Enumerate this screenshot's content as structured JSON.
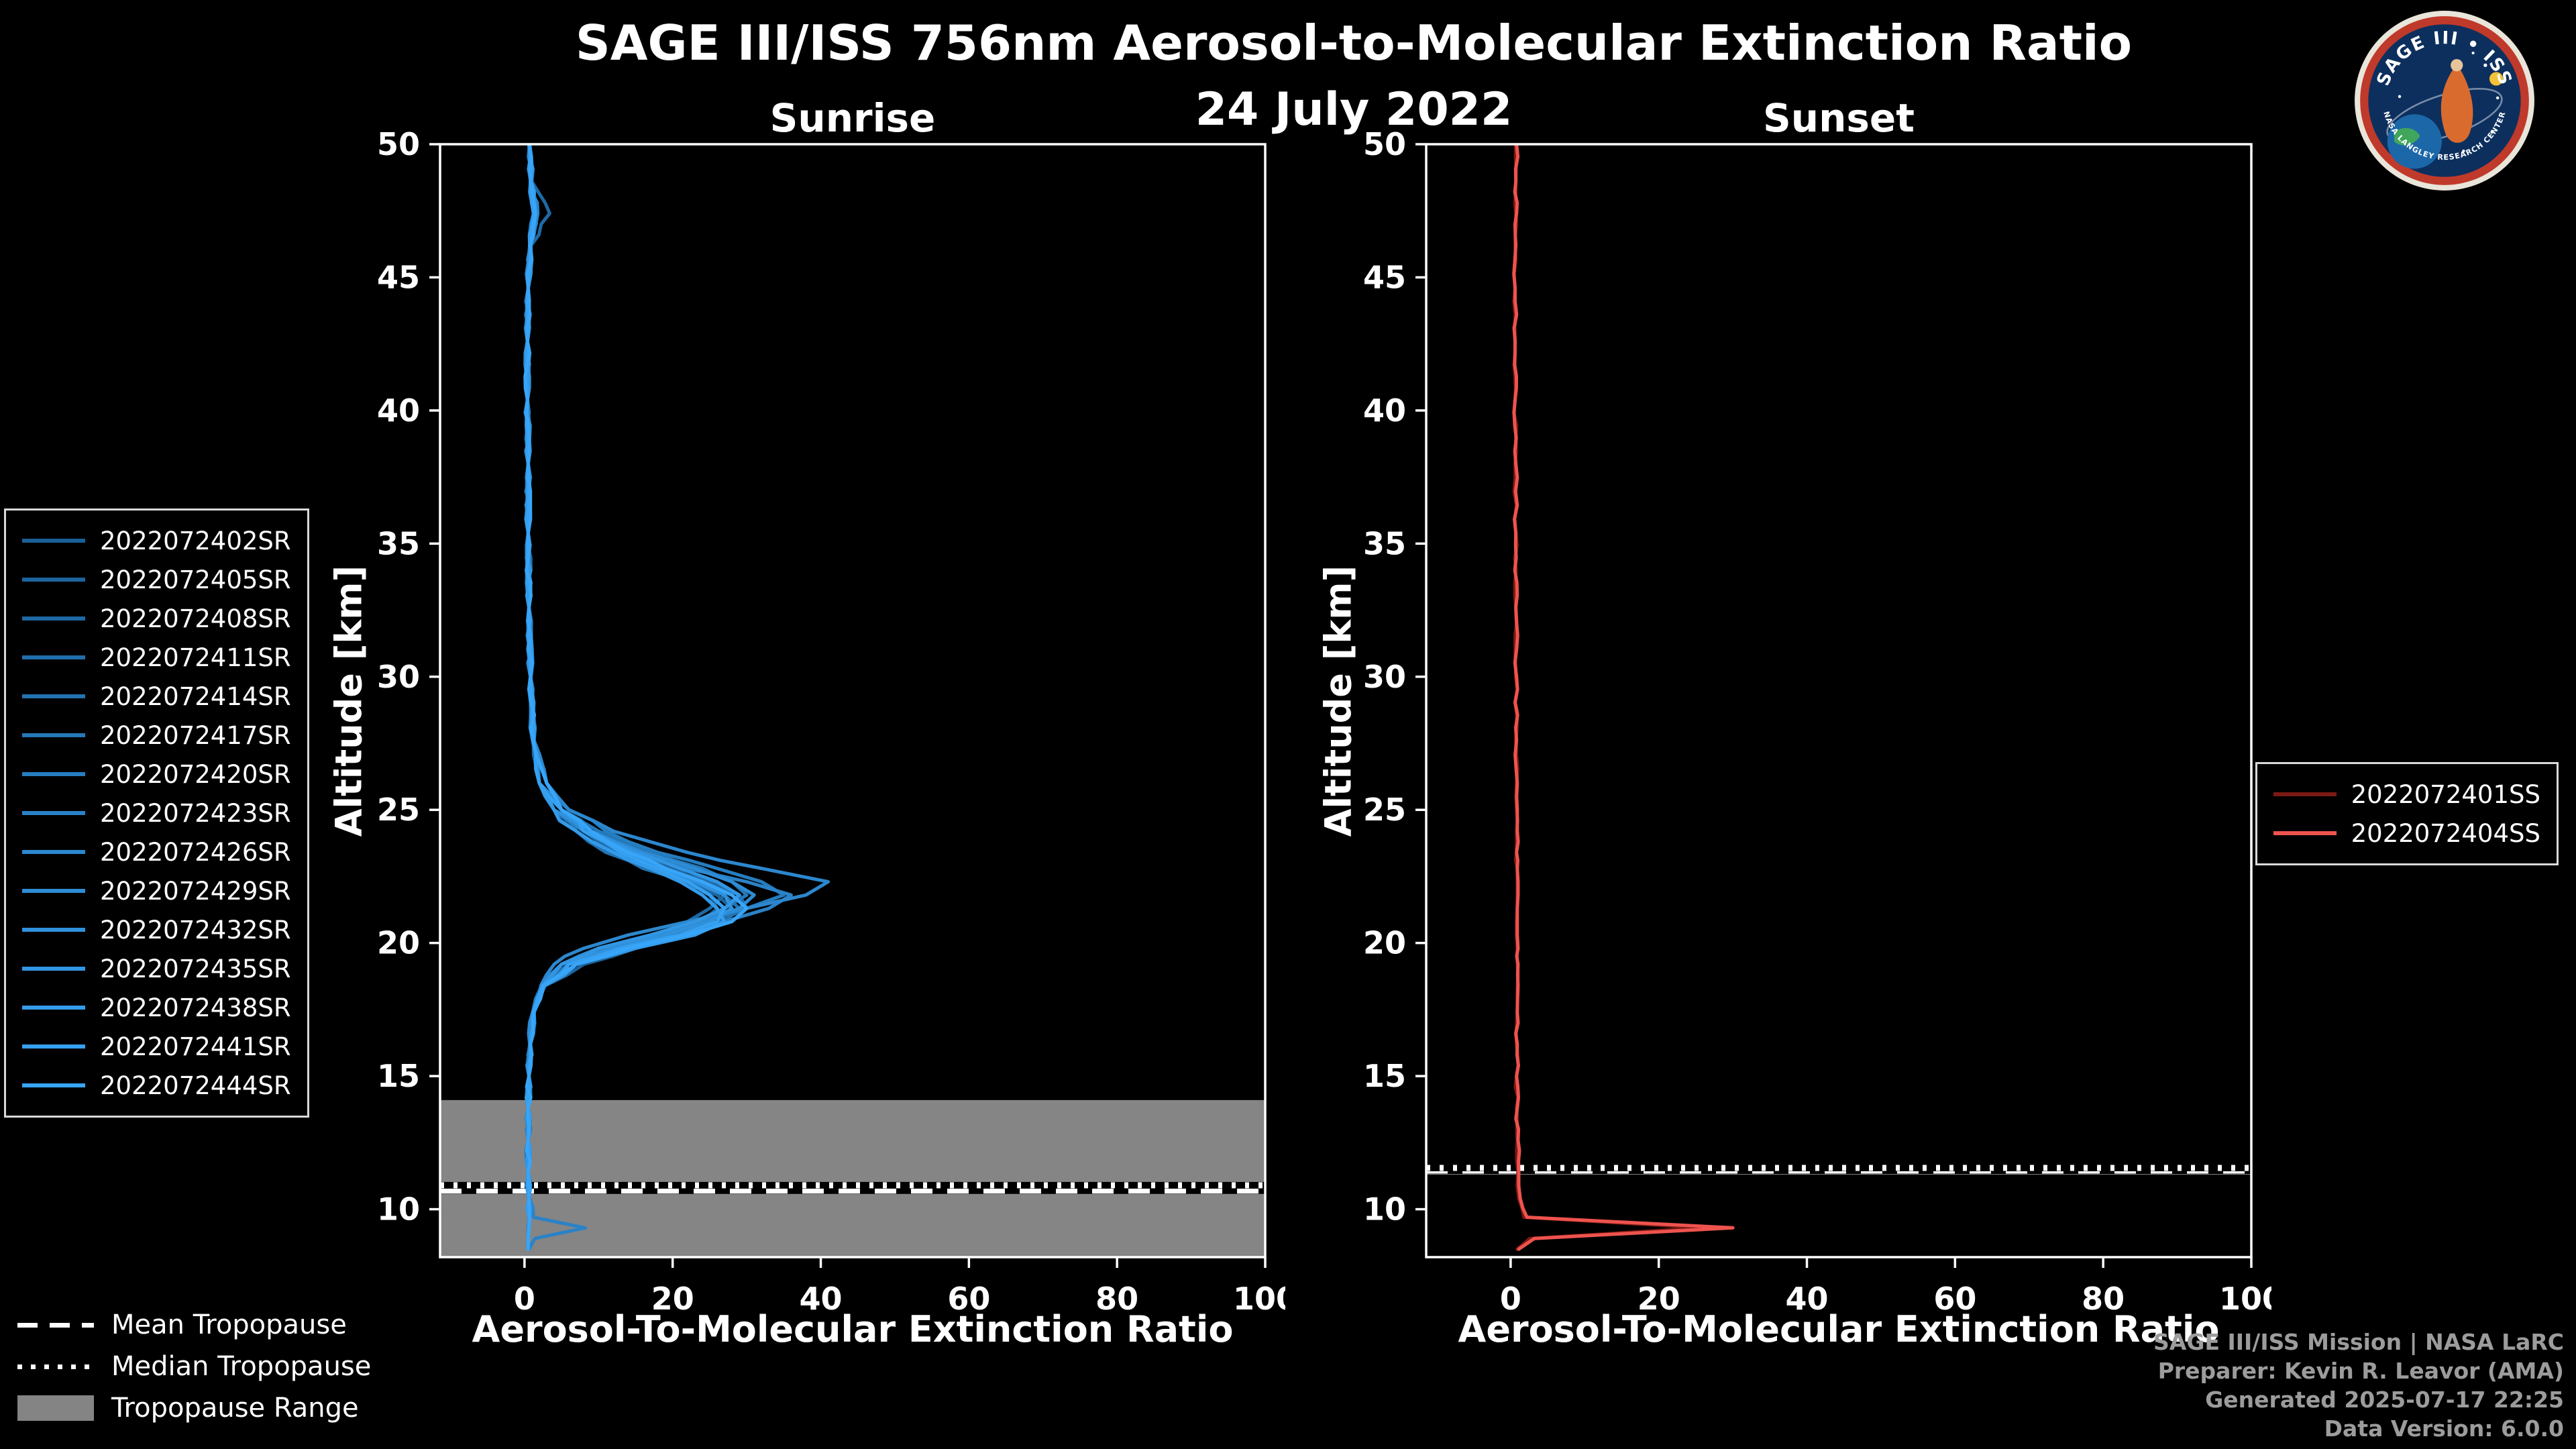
{
  "meta": {
    "title": "SAGE III/ISS 756nm Aerosol-to-Molecular Extinction Ratio",
    "date": "24 July 2022"
  },
  "logo": {
    "title": "SAGE III • ISS",
    "subtitle": "NASA LANGLEY RESEARCH CENTER"
  },
  "credits": [
    "SAGE III/ISS Mission | NASA LaRC",
    "Preparer: Kevin R. Leavor (AMA)",
    "Generated 2025-07-17 22:25",
    "Data Version: 6.0.0"
  ],
  "tropopause_legend": [
    {
      "label": "Mean Tropopause",
      "style": "dashed"
    },
    {
      "label": "Median Tropopause",
      "style": "dotted"
    },
    {
      "label": "Tropopause Range",
      "style": "patch"
    }
  ],
  "colors": {
    "background": "#000000",
    "axis": "#ffffff",
    "tropopause_band": "#858585",
    "credits_text": "#9c9c9c"
  },
  "chart_data": [
    {
      "type": "line",
      "id": "sunrise",
      "title": "Sunrise",
      "xlabel": "Aerosol-To-Molecular Extinction Ratio",
      "ylabel": "Altitude [km]",
      "xlim": [
        -11.4,
        100
      ],
      "ylim": [
        8.2,
        50
      ],
      "xticks": [
        0,
        20,
        40,
        60,
        80,
        100
      ],
      "yticks": [
        10,
        15,
        20,
        25,
        30,
        35,
        40,
        45,
        50
      ],
      "grid": false,
      "legend_position": "outside-left",
      "noise": 1.0,
      "tropopause": {
        "mean": 10.7,
        "median": 10.9,
        "range": [
          8.2,
          14.1
        ]
      },
      "altitudes": [
        50,
        48.6,
        47.4,
        46.2,
        44.6,
        42.6,
        40.4,
        38,
        35.4,
        32.6,
        30,
        27.6,
        26,
        25,
        24.2,
        23.4,
        22.8,
        22.3,
        21.8,
        21.3,
        20.8,
        20.3,
        19.8,
        19.2,
        18.4,
        17.4,
        16.2,
        15,
        13.8,
        12.6,
        11.4,
        10.4,
        9.7,
        9.3,
        8.9,
        8.5
      ],
      "series": [
        {
          "name": "2022072402SR",
          "color": "#1a5f96",
          "values": [
            0.7,
            0.9,
            1.4,
            0.8,
            0.5,
            0.4,
            0.4,
            0.5,
            0.5,
            0.6,
            0.8,
            1.2,
            2,
            4,
            8,
            14,
            18,
            22,
            25,
            26,
            24,
            20,
            14,
            7,
            2.5,
            1.2,
            0.8,
            0.6,
            0.5,
            0.5,
            0.5,
            0.6,
            0.7,
            0.6,
            0.5,
            0.5
          ]
        },
        {
          "name": "2022072405SR",
          "color": "#1c649d",
          "values": [
            0.6,
            0.8,
            1.2,
            0.7,
            0.5,
            0.4,
            0.4,
            0.5,
            0.5,
            0.6,
            0.8,
            1.1,
            2,
            4,
            7,
            12,
            17,
            21,
            26,
            28,
            26,
            21,
            15,
            8,
            2.8,
            1.3,
            0.8,
            0.6,
            0.5,
            0.5,
            0.5,
            0.6,
            0.6,
            0.5,
            0.5,
            0.5
          ]
        },
        {
          "name": "2022072408SR",
          "color": "#1e69a4",
          "values": [
            0.7,
            1.0,
            3.4,
            0.9,
            0.5,
            0.4,
            0.4,
            0.5,
            0.5,
            0.6,
            0.8,
            1.2,
            2,
            5,
            9,
            15,
            20,
            24,
            27,
            25,
            22,
            18,
            12,
            6,
            2.4,
            1.1,
            0.7,
            0.6,
            0.5,
            0.5,
            0.5,
            0.6,
            0.7,
            0.6,
            0.5,
            0.5
          ]
        },
        {
          "name": "2022072411SR",
          "color": "#206eab",
          "values": [
            0.7,
            0.9,
            1.5,
            0.8,
            0.5,
            0.4,
            0.4,
            0.5,
            0.5,
            0.6,
            0.9,
            1.3,
            3,
            5,
            8,
            13,
            19,
            25,
            29,
            30,
            26,
            20,
            13,
            6,
            2.5,
            1.2,
            0.8,
            0.6,
            0.5,
            0.5,
            0.5,
            0.6,
            0.7,
            0.6,
            0.5,
            0.5
          ]
        },
        {
          "name": "2022072414SR",
          "color": "#2273b2",
          "values": [
            0.6,
            0.8,
            1.3,
            0.7,
            0.5,
            0.4,
            0.4,
            0.5,
            0.5,
            0.6,
            0.8,
            1.2,
            2,
            4,
            7,
            11,
            16,
            22,
            27,
            29,
            27,
            22,
            15,
            7,
            2.6,
            1.2,
            0.8,
            0.6,
            0.5,
            0.5,
            0.5,
            0.6,
            0.6,
            0.6,
            0.5,
            0.5
          ]
        },
        {
          "name": "2022072417SR",
          "color": "#2478b9",
          "values": [
            0.7,
            0.9,
            1.4,
            0.8,
            0.5,
            0.4,
            0.4,
            0.5,
            0.5,
            0.6,
            0.8,
            1.2,
            2,
            5,
            10,
            17,
            24,
            28,
            30,
            27,
            23,
            18,
            11,
            5,
            2.3,
            1.1,
            0.7,
            0.6,
            0.5,
            0.5,
            0.5,
            0.6,
            0.7,
            0.6,
            0.5,
            0.5
          ]
        },
        {
          "name": "2022072420SR",
          "color": "#267dc0",
          "values": [
            0.7,
            0.9,
            1.6,
            0.8,
            0.5,
            0.4,
            0.4,
            0.5,
            0.5,
            0.6,
            0.8,
            1.2,
            3,
            6,
            11,
            18,
            26,
            32,
            35,
            30,
            24,
            17,
            10,
            5,
            2.4,
            1.2,
            0.8,
            0.6,
            0.5,
            0.5,
            0.5,
            0.6,
            0.7,
            0.6,
            0.5,
            0.5
          ]
        },
        {
          "name": "2022072423SR",
          "color": "#2a82c7",
          "values": [
            0.6,
            0.8,
            1.3,
            0.7,
            0.5,
            0.4,
            0.4,
            0.5,
            0.5,
            0.6,
            0.8,
            1.1,
            2,
            4,
            8,
            14,
            22,
            30,
            36,
            33,
            27,
            19,
            11,
            5,
            2.6,
            1.3,
            0.8,
            0.6,
            0.5,
            0.5,
            0.5,
            0.7,
            1.2,
            8.2,
            1.4,
            0.6
          ]
        },
        {
          "name": "2022072426SR",
          "color": "#2c87ce",
          "values": [
            0.6,
            0.8,
            1.8,
            0.7,
            0.5,
            0.4,
            0.4,
            0.5,
            0.5,
            0.6,
            0.8,
            1.3,
            3,
            6,
            12,
            22,
            32,
            41,
            38,
            30,
            22,
            14,
            8,
            4,
            2.2,
            1.1,
            0.7,
            0.6,
            0.5,
            0.5,
            0.5,
            0.6,
            0.6,
            0.5,
            0.5,
            0.5
          ]
        },
        {
          "name": "2022072429SR",
          "color": "#2e8cd5",
          "values": [
            0.7,
            0.9,
            1.4,
            0.8,
            0.5,
            0.4,
            0.4,
            0.5,
            0.5,
            0.6,
            0.8,
            1.2,
            2,
            5,
            9,
            16,
            23,
            28,
            31,
            29,
            24,
            18,
            10,
            5,
            2.5,
            1.2,
            0.8,
            0.6,
            0.5,
            0.5,
            0.5,
            0.6,
            0.7,
            0.6,
            0.5,
            0.5
          ]
        },
        {
          "name": "2022072432SR",
          "color": "#3091dc",
          "values": [
            0.7,
            0.9,
            1.3,
            0.8,
            0.5,
            0.4,
            0.4,
            0.5,
            0.5,
            0.6,
            0.8,
            1.2,
            2,
            4,
            8,
            13,
            18,
            23,
            27,
            28,
            25,
            19,
            12,
            6,
            2.6,
            1.2,
            0.8,
            0.6,
            0.5,
            0.5,
            0.5,
            0.6,
            0.7,
            0.6,
            0.5,
            0.5
          ]
        },
        {
          "name": "2022072435SR",
          "color": "#3296e3",
          "values": [
            0.7,
            0.9,
            1.4,
            0.8,
            0.5,
            0.4,
            0.4,
            0.5,
            0.5,
            0.6,
            0.8,
            1.2,
            3,
            5,
            9,
            15,
            21,
            26,
            29,
            27,
            23,
            17,
            10,
            5,
            2.4,
            1.2,
            0.8,
            0.6,
            0.5,
            0.5,
            0.5,
            0.6,
            0.7,
            0.6,
            0.5,
            0.5
          ]
        },
        {
          "name": "2022072438SR",
          "color": "#349bea",
          "values": [
            0.6,
            0.8,
            1.2,
            0.7,
            0.5,
            0.4,
            0.4,
            0.5,
            0.5,
            0.6,
            0.8,
            1.1,
            2,
            4,
            7,
            12,
            17,
            21,
            24,
            26,
            27,
            23,
            15,
            7,
            2.7,
            1.3,
            0.8,
            0.6,
            0.5,
            0.5,
            0.5,
            0.6,
            0.6,
            0.6,
            0.5,
            0.5
          ]
        },
        {
          "name": "2022072441SR",
          "color": "#36a0f1",
          "values": [
            0.7,
            0.9,
            1.4,
            0.8,
            0.5,
            0.4,
            0.4,
            0.5,
            0.5,
            0.6,
            0.8,
            1.2,
            2,
            5,
            8,
            13,
            18,
            22,
            25,
            27,
            26,
            21,
            13,
            6,
            2.5,
            1.2,
            0.8,
            0.6,
            0.5,
            0.5,
            0.5,
            0.6,
            0.7,
            0.6,
            0.5,
            0.5
          ]
        },
        {
          "name": "2022072444SR",
          "color": "#38a5f8",
          "values": [
            0.7,
            0.9,
            1.5,
            0.8,
            0.5,
            0.4,
            0.4,
            0.5,
            0.5,
            0.6,
            0.8,
            1.2,
            3,
            5,
            9,
            14,
            19,
            24,
            28,
            30,
            28,
            22,
            14,
            7,
            2.5,
            1.2,
            0.8,
            0.6,
            0.5,
            0.5,
            0.5,
            0.6,
            0.7,
            0.6,
            0.5,
            0.5
          ]
        }
      ]
    },
    {
      "type": "line",
      "id": "sunset",
      "title": "Sunset",
      "xlabel": "Aerosol-To-Molecular Extinction Ratio",
      "ylabel": "Altitude [km]",
      "xlim": [
        -11.4,
        100
      ],
      "ylim": [
        8.2,
        50
      ],
      "xticks": [
        0,
        20,
        40,
        60,
        80,
        100
      ],
      "yticks": [
        10,
        15,
        20,
        25,
        30,
        35,
        40,
        45,
        50
      ],
      "grid": false,
      "legend_position": "outside-right",
      "noise": 0.7,
      "tropopause": {
        "mean": 11.45,
        "median": 11.55,
        "range": [
          11.3,
          11.6
        ]
      },
      "altitudes": [
        50,
        48.6,
        47.4,
        46.2,
        44.6,
        42.6,
        40.4,
        38,
        35.4,
        32.6,
        30,
        27.6,
        26,
        25,
        24.2,
        23.4,
        22.8,
        22.3,
        21.8,
        21.3,
        20.8,
        20.3,
        19.8,
        19.2,
        18.4,
        17.4,
        16.2,
        15,
        13.8,
        12.6,
        11.4,
        10.4,
        9.7,
        9.3,
        8.9,
        8.5
      ],
      "series": [
        {
          "name": "2022072401SS",
          "color": "#7a1a15",
          "values": [
            0.7,
            0.7,
            0.7,
            0.6,
            0.6,
            0.6,
            0.6,
            0.6,
            0.7,
            0.7,
            0.7,
            0.7,
            0.8,
            0.8,
            0.8,
            0.8,
            0.9,
            0.9,
            0.9,
            0.9,
            0.8,
            0.8,
            0.9,
            0.9,
            0.9,
            0.9,
            0.8,
            0.8,
            0.8,
            0.9,
            1.0,
            1.1,
            1.8,
            26,
            2.6,
            0.9
          ]
        },
        {
          "name": "2022072404SS",
          "color": "#ef534e",
          "values": [
            0.8,
            0.7,
            0.8,
            0.7,
            0.6,
            0.6,
            0.6,
            0.7,
            0.7,
            0.7,
            0.8,
            0.8,
            0.9,
            0.9,
            0.9,
            0.8,
            0.9,
            1.0,
            1.0,
            0.9,
            0.9,
            0.9,
            1.0,
            1.0,
            1.0,
            0.9,
            0.9,
            0.8,
            0.9,
            1.0,
            1.1,
            1.3,
            2.2,
            30,
            3.2,
            1.1
          ]
        }
      ]
    }
  ]
}
